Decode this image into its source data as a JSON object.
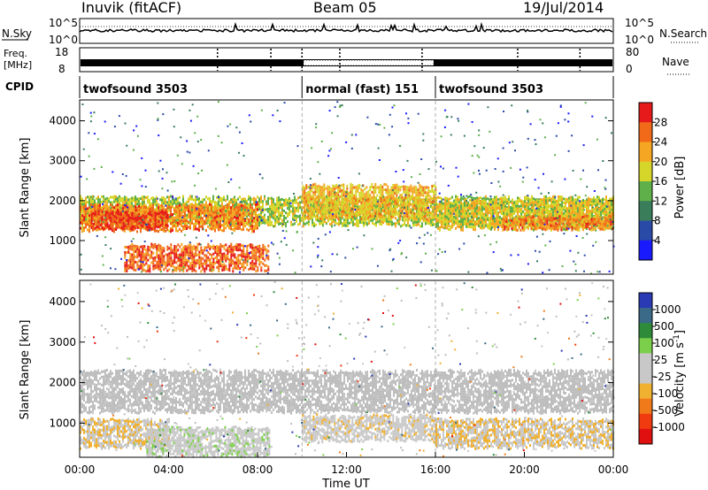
{
  "header": {
    "station": "Inuvik (fitACF)",
    "beam": "Beam 05",
    "date": "19/Jul/2014"
  },
  "noise_panel": {
    "left_label": "N.Sky",
    "right_label": "N.Search",
    "left_ticks": [
      "10^5",
      "10^0"
    ],
    "right_ticks": [
      "10^5",
      "10^0"
    ]
  },
  "freq_panel": {
    "left_label_1": "Freq.",
    "left_label_2": "[MHz]",
    "right_label": "Nave",
    "left_ticks": [
      "18",
      "8"
    ],
    "right_ticks": [
      "80",
      "0"
    ]
  },
  "cpid_panel": {
    "label": "CPID",
    "segments": [
      {
        "name": "twofsound 3503",
        "start_h": 0,
        "end_h": 10
      },
      {
        "name": "normal (fast) 151",
        "start_h": 10,
        "end_h": 16
      },
      {
        "name": "twofsound 3503",
        "start_h": 16,
        "end_h": 24
      }
    ]
  },
  "colors": {
    "power": [
      "#1a1aff",
      "#2a4aa8",
      "#3a7d5a",
      "#5fb04a",
      "#d6d62a",
      "#f5a623",
      "#f06a1a",
      "#e61a1a"
    ],
    "velocity": [
      "#2a3ab5",
      "#3a6a88",
      "#2e8b3a",
      "#7ccf4a",
      "#c8c8c8",
      "#c8c8c8",
      "#f0b030",
      "#f07a1a",
      "#f03a10",
      "#e01010"
    ],
    "velocity_gray": "#bdbdbd"
  },
  "chart_data": [
    {
      "type": "heatmap",
      "title": "Power",
      "ylabel": "Slant Range [km]",
      "xlabel": "Time UT",
      "x_ticks": [
        "00:00",
        "04:00",
        "08:00",
        "12:00",
        "16:00",
        "20:00",
        "00:00"
      ],
      "x_range_h": [
        0,
        24
      ],
      "y_ticks": [
        1000,
        2000,
        3000,
        4000
      ],
      "ylim": [
        180,
        4500
      ],
      "colorbar": {
        "label": "Power [dB]",
        "ticks": [
          "4",
          "8",
          "12",
          "16",
          "20",
          "24",
          "28"
        ],
        "range": [
          0,
          30
        ]
      },
      "bands": [
        {
          "t0": 0,
          "t1": 24,
          "r0": 1400,
          "r1": 2100,
          "level": 16
        },
        {
          "t0": 0,
          "t1": 8,
          "r0": 1250,
          "r1": 1900,
          "level": 24
        },
        {
          "t0": 0.5,
          "t1": 4,
          "r0": 1350,
          "r1": 1750,
          "level": 28
        },
        {
          "t0": 2,
          "t1": 8.5,
          "r0": 250,
          "r1": 900,
          "level": 26
        },
        {
          "t0": 10,
          "t1": 16,
          "r0": 1600,
          "r1": 2400,
          "level": 20
        },
        {
          "t0": 16,
          "t1": 24,
          "r0": 1300,
          "r1": 2000,
          "level": 18
        },
        {
          "t0": 19,
          "t1": 24,
          "r0": 1300,
          "r1": 1600,
          "level": 24
        }
      ]
    },
    {
      "type": "heatmap",
      "title": "Velocity",
      "ylabel": "Slant Range [km]",
      "xlabel": "Time UT",
      "x_ticks": [
        "00:00",
        "04:00",
        "08:00",
        "12:00",
        "16:00",
        "20:00",
        "00:00"
      ],
      "x_range_h": [
        0,
        24
      ],
      "y_ticks": [
        1000,
        2000,
        3000,
        4000
      ],
      "ylim": [
        180,
        4500
      ],
      "colorbar": {
        "label": "Velocity [m s^-1]",
        "ticks": [
          "1000",
          "500",
          "100",
          "25",
          "-25",
          "-100",
          "-500",
          "-1000"
        ],
        "range": [
          -1000,
          1000
        ]
      },
      "bands": [
        {
          "t0": 0,
          "t1": 24,
          "r0": 1300,
          "r1": 2300,
          "value": 0
        },
        {
          "t0": 0,
          "t1": 4,
          "r0": 400,
          "r1": 1100,
          "value": -200
        },
        {
          "t0": 3,
          "t1": 8.5,
          "r0": 200,
          "r1": 900,
          "value": 150
        },
        {
          "t0": 10,
          "t1": 16,
          "r0": 600,
          "r1": 1200,
          "value": -150
        },
        {
          "t0": 16,
          "t1": 24,
          "r0": 400,
          "r1": 1100,
          "value": -200
        }
      ]
    }
  ]
}
